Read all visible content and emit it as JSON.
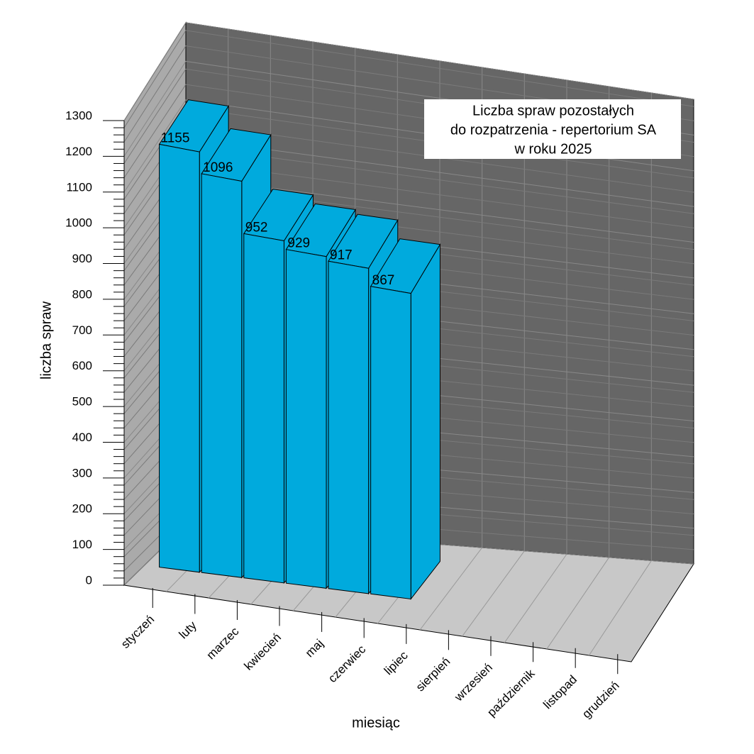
{
  "chart_data": {
    "type": "bar3d",
    "title": [
      "Liczba spraw pozostałych",
      "do rozpatrzenia - repertorium SA",
      "w roku 2025"
    ],
    "x_label": "miesiąc",
    "y_label": "liczba spraw",
    "categories": [
      "styczeń",
      "luty",
      "marzec",
      "kwiecień",
      "maj",
      "czerwiec",
      "lipiec",
      "sierpień",
      "wrzesień",
      "październik",
      "listopad",
      "grudzień"
    ],
    "values": [
      1155,
      1096,
      952,
      929,
      917,
      867,
      null,
      null,
      null,
      null,
      null,
      null
    ],
    "color": "#00aadd",
    "ylim": [
      0,
      1300
    ],
    "yticks": [
      0,
      100,
      200,
      300,
      400,
      500,
      600,
      700,
      800,
      900,
      1000,
      1100,
      1200,
      1300
    ],
    "grid": true
  }
}
